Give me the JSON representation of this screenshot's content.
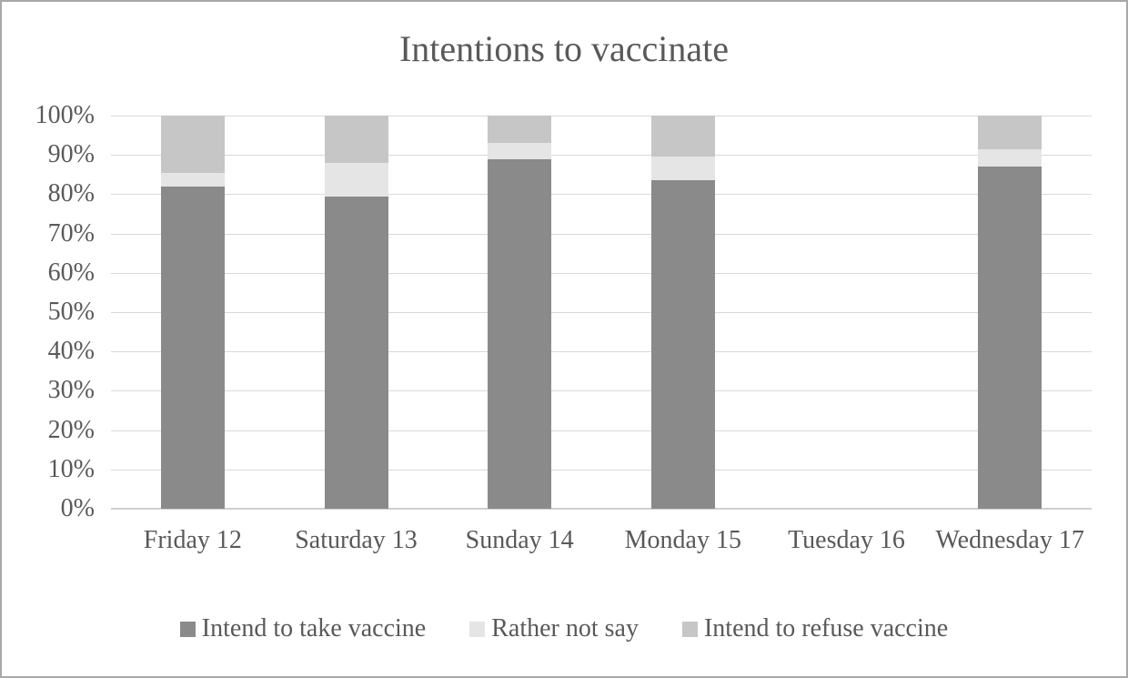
{
  "chart_data": {
    "type": "bar",
    "stacked": true,
    "title": "Intentions to vaccinate",
    "categories": [
      "Friday 12",
      "Saturday 13",
      "Sunday 14",
      "Monday 15",
      "Tuesday 16",
      "Wednesday 17"
    ],
    "series": [
      {
        "name": "Intend to take vaccine",
        "color": "#8a8a8a",
        "values": [
          82,
          79.5,
          89,
          83.5,
          0,
          87
        ]
      },
      {
        "name": "Rather not say",
        "color": "#e5e5e5",
        "values": [
          3.5,
          8.5,
          4,
          6,
          0,
          4.5
        ]
      },
      {
        "name": "Intend to refuse vaccine",
        "color": "#c6c6c6",
        "values": [
          14.5,
          12,
          7,
          10.5,
          0,
          8.5
        ]
      }
    ],
    "y_ticks": [
      "0%",
      "10%",
      "20%",
      "30%",
      "40%",
      "50%",
      "60%",
      "70%",
      "80%",
      "90%",
      "100%"
    ],
    "ylim": [
      0,
      100
    ],
    "grid": "horizontal",
    "legend_position": "bottom",
    "colors": {
      "text": "#595959",
      "gridline": "#d9d9d9",
      "background": "#ffffff",
      "border": "#a9a9a9"
    }
  }
}
